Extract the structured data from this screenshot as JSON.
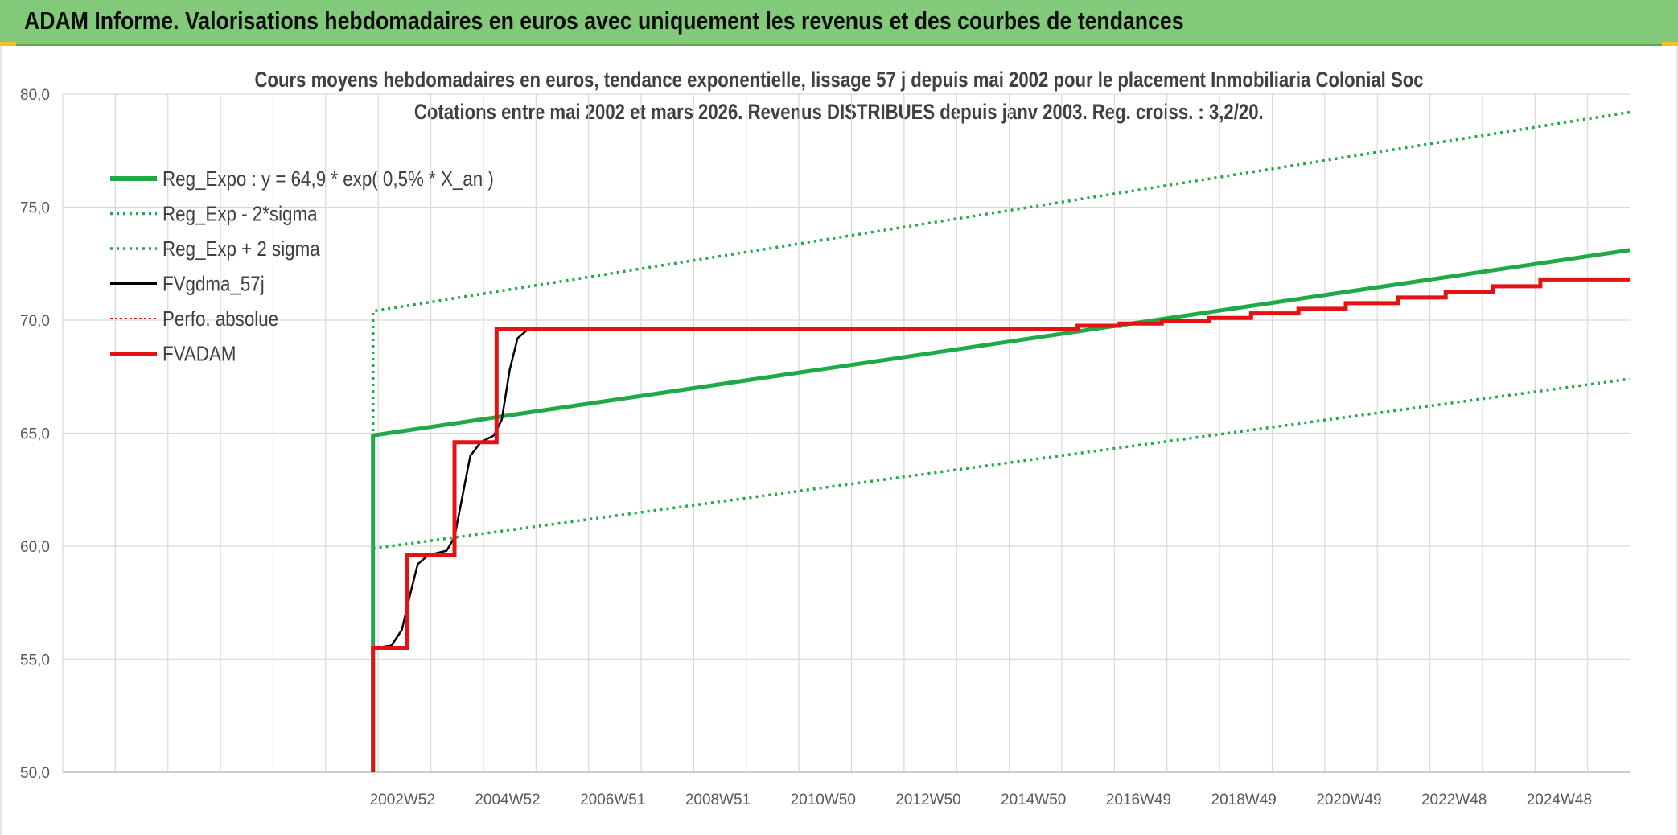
{
  "header": {
    "title": "ADAM Informe. Valorisations hebdomadaires en euros avec uniquement les revenus et des courbes de tendances"
  },
  "colors": {
    "banner": "#82c97a",
    "regression": "#1faa48",
    "fvgdma": "#000000",
    "fvadam": "#e31313",
    "perfo": "#e31313",
    "grid": "#d9d9d9"
  },
  "chart_data": {
    "type": "line",
    "title": "Cours moyens hebdomadaires en euros, tendance exponentielle, lissage 57 j depuis mai 2002 pour le placement Inmobiliaria Colonial Soc",
    "subtitle": "Cotations entre mai 2002 et mars 2026. Revenus DISTRIBUES depuis janv 2003. Reg. croiss. : 3,2/20.",
    "ylim": [
      50,
      80
    ],
    "xlim": [
      1996.5,
      2026.3
    ],
    "y_ticks": [
      "50,0",
      "55,0",
      "60,0",
      "65,0",
      "70,0",
      "75,0",
      "80,0"
    ],
    "x_tick_labels": [
      "2002W52",
      "2004W52",
      "2006W51",
      "2008W51",
      "2010W50",
      "2012W50",
      "2014W50",
      "2016W49",
      "2018W49",
      "2020W49",
      "2022W48",
      "2024W48"
    ],
    "x_tick_positions": [
      2002.96,
      2004.96,
      2006.96,
      2008.96,
      2010.96,
      2012.96,
      2014.96,
      2016.96,
      2018.96,
      2020.96,
      2022.96,
      2024.96
    ],
    "legend": [
      "Reg_Expo : y = 64,9 * exp( 0,5% *  X_an )",
      "Reg_Exp - 2*sigma",
      "Reg_Exp + 2 sigma",
      "FVgdma_57j",
      "Perfo. absolue",
      "FVADAM"
    ],
    "series": [
      {
        "name": "Reg_Expo : y = 64,9 * exp( 0,5% *  X_an )",
        "style": "solid-thick",
        "color": "#1faa48",
        "points": [
          [
            2002.4,
            50.0
          ],
          [
            2002.4,
            64.9
          ],
          [
            2026.3,
            73.1
          ]
        ]
      },
      {
        "name": "Reg_Exp - 2*sigma",
        "style": "dotted",
        "color": "#1faa48",
        "points": [
          [
            2002.4,
            59.9
          ],
          [
            2026.3,
            67.4
          ]
        ]
      },
      {
        "name": "Reg_Exp + 2 sigma",
        "style": "dotted",
        "color": "#1faa48",
        "points": [
          [
            2002.4,
            50.0
          ],
          [
            2002.4,
            70.4
          ],
          [
            2026.3,
            79.2
          ]
        ]
      },
      {
        "name": "FVgdma_57j",
        "style": "solid",
        "color": "#000000",
        "points": [
          [
            2002.45,
            55.5
          ],
          [
            2002.75,
            55.6
          ],
          [
            2002.95,
            56.3
          ],
          [
            2003.1,
            57.8
          ],
          [
            2003.25,
            59.2
          ],
          [
            2003.45,
            59.6
          ],
          [
            2003.8,
            59.8
          ],
          [
            2003.95,
            60.4
          ],
          [
            2004.1,
            62.2
          ],
          [
            2004.25,
            64.0
          ],
          [
            2004.45,
            64.6
          ],
          [
            2004.7,
            64.9
          ],
          [
            2004.85,
            65.6
          ],
          [
            2005.0,
            67.8
          ],
          [
            2005.15,
            69.2
          ],
          [
            2005.35,
            69.6
          ],
          [
            2005.7,
            69.6
          ]
        ]
      },
      {
        "name": "FVADAM",
        "style": "solid-thick",
        "color": "#e31313",
        "points": [
          [
            2002.4,
            50.0
          ],
          [
            2002.4,
            55.5
          ],
          [
            2003.05,
            55.5
          ],
          [
            2003.05,
            59.6
          ],
          [
            2003.95,
            59.6
          ],
          [
            2003.95,
            64.6
          ],
          [
            2004.75,
            64.6
          ],
          [
            2004.75,
            69.6
          ],
          [
            2015.8,
            69.6
          ],
          [
            2015.8,
            69.75
          ],
          [
            2016.6,
            69.75
          ],
          [
            2016.6,
            69.85
          ],
          [
            2017.4,
            69.85
          ],
          [
            2017.4,
            69.95
          ],
          [
            2018.3,
            69.95
          ],
          [
            2018.3,
            70.1
          ],
          [
            2019.1,
            70.1
          ],
          [
            2019.1,
            70.3
          ],
          [
            2020.0,
            70.3
          ],
          [
            2020.0,
            70.5
          ],
          [
            2020.9,
            70.5
          ],
          [
            2020.9,
            70.75
          ],
          [
            2021.9,
            70.75
          ],
          [
            2021.9,
            71.0
          ],
          [
            2022.8,
            71.0
          ],
          [
            2022.8,
            71.25
          ],
          [
            2023.7,
            71.25
          ],
          [
            2023.7,
            71.5
          ],
          [
            2024.6,
            71.5
          ],
          [
            2024.6,
            71.8
          ],
          [
            2026.3,
            71.8
          ]
        ]
      }
    ]
  }
}
